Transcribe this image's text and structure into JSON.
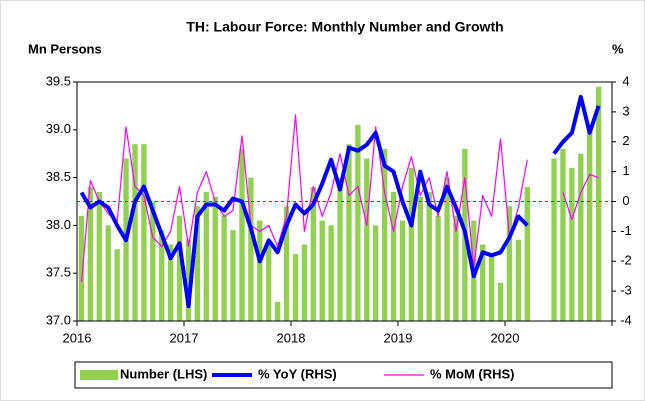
{
  "chart_data": {
    "type": "bar-line",
    "title": "TH: Labour Force: Monthly Number and Growth",
    "y_label": "Mn Persons",
    "y2_label": "%",
    "categories": [
      "2016",
      null,
      null,
      null,
      null,
      null,
      null,
      null,
      null,
      null,
      null,
      null,
      "2017",
      null,
      null,
      null,
      null,
      null,
      null,
      null,
      null,
      null,
      null,
      null,
      "2018",
      null,
      null,
      null,
      null,
      null,
      null,
      null,
      null,
      null,
      null,
      null,
      "2019",
      null,
      null,
      null,
      null,
      null,
      null,
      null,
      null,
      null,
      null,
      null,
      "2020",
      null,
      null,
      null,
      null,
      null,
      null,
      null,
      null,
      null,
      null,
      null
    ],
    "series": [
      {
        "name": "Number (LHS)",
        "type": "bar",
        "axis": "y",
        "color": "#92d050",
        "values": [
          38.1,
          38.4,
          38.35,
          38.0,
          37.75,
          38.7,
          38.85,
          38.85,
          38.25,
          37.95,
          37.8,
          38.1,
          37.85,
          38.2,
          38.35,
          38.3,
          38.1,
          37.95,
          38.8,
          38.5,
          38.05,
          37.8,
          37.2,
          38.2,
          37.7,
          37.8,
          38.4,
          38.05,
          38.0,
          38.5,
          38.85,
          39.05,
          38.7,
          38.0,
          38.8,
          38.35,
          38.05,
          38.6,
          38.3,
          38.35,
          38.1,
          38.5,
          38.1,
          38.8,
          38.05,
          37.8,
          37.7,
          37.4,
          38.2,
          37.85,
          38.4,
          null,
          null,
          38.7,
          38.8,
          38.6,
          38.75,
          39.0,
          39.45,
          null
        ]
      },
      {
        "name": "% YoY (RHS)",
        "type": "line",
        "axis": "y2",
        "color": "#0000ff",
        "width": 4,
        "values": [
          0.3,
          -0.2,
          0,
          -0.2,
          -0.8,
          -1.3,
          0,
          0.5,
          -0.3,
          -1.1,
          -1.9,
          -1.4,
          -3.5,
          -0.5,
          -0.1,
          -0.1,
          -0.3,
          0.1,
          0,
          -0.9,
          -2.0,
          -1.3,
          -1.7,
          -0.8,
          -0.1,
          -0.4,
          -0.1,
          0.6,
          1.4,
          0.4,
          1.8,
          1.7,
          1.9,
          2.3,
          1.2,
          1.0,
          0.0,
          -0.8,
          1.0,
          -0.1,
          -0.3,
          0.5,
          -0.2,
          -1.0,
          -2.5,
          -1.7,
          -1.8,
          -1.7,
          -1.2,
          -0.5,
          -0.8,
          null,
          null,
          1.6,
          2.0,
          2.3,
          3.5,
          2.3,
          3.2,
          null
        ]
      },
      {
        "name": "% MoM (RHS)",
        "type": "line",
        "axis": "y2",
        "color": "#ff00ff",
        "width": 1.2,
        "values": [
          -2.7,
          0.7,
          0,
          -0.4,
          -0.7,
          2.5,
          0.5,
          0.2,
          -1.2,
          -1.5,
          -1.0,
          0.5,
          -1.5,
          0.3,
          1.0,
          0,
          -0.5,
          -0.3,
          2.2,
          -0.8,
          -1.0,
          -0.8,
          -1.5,
          -0.5,
          2.9,
          -1.0,
          0.5,
          -0.5,
          0.3,
          1.6,
          0.2,
          0.5,
          -0.8,
          2.5,
          0.3,
          -1.0,
          0.5,
          1.5,
          0.2,
          0.8,
          -0.5,
          1.0,
          -1.0,
          0.8,
          -2.2,
          0.2,
          -0.5,
          2.1,
          -1.2,
          -0.2,
          1.4,
          null,
          null,
          null,
          0.3,
          -0.6,
          0.3,
          0.9,
          0.8,
          null
        ]
      }
    ],
    "ylim": [
      37.0,
      39.5
    ],
    "yticks": [
      {
        "value": 37.0,
        "label": "37.0"
      },
      37.5,
      {
        "value": 38.0,
        "label": "38.0"
      },
      38.5,
      {
        "value": 39.0,
        "label": "39.0"
      },
      39.5
    ],
    "y2lim": [
      -4,
      4
    ],
    "y2ticks": [
      -4,
      -3,
      -2,
      -1,
      0,
      1,
      2,
      3,
      4
    ],
    "zero_line_color": "#ff0000",
    "legend": "bottom"
  }
}
